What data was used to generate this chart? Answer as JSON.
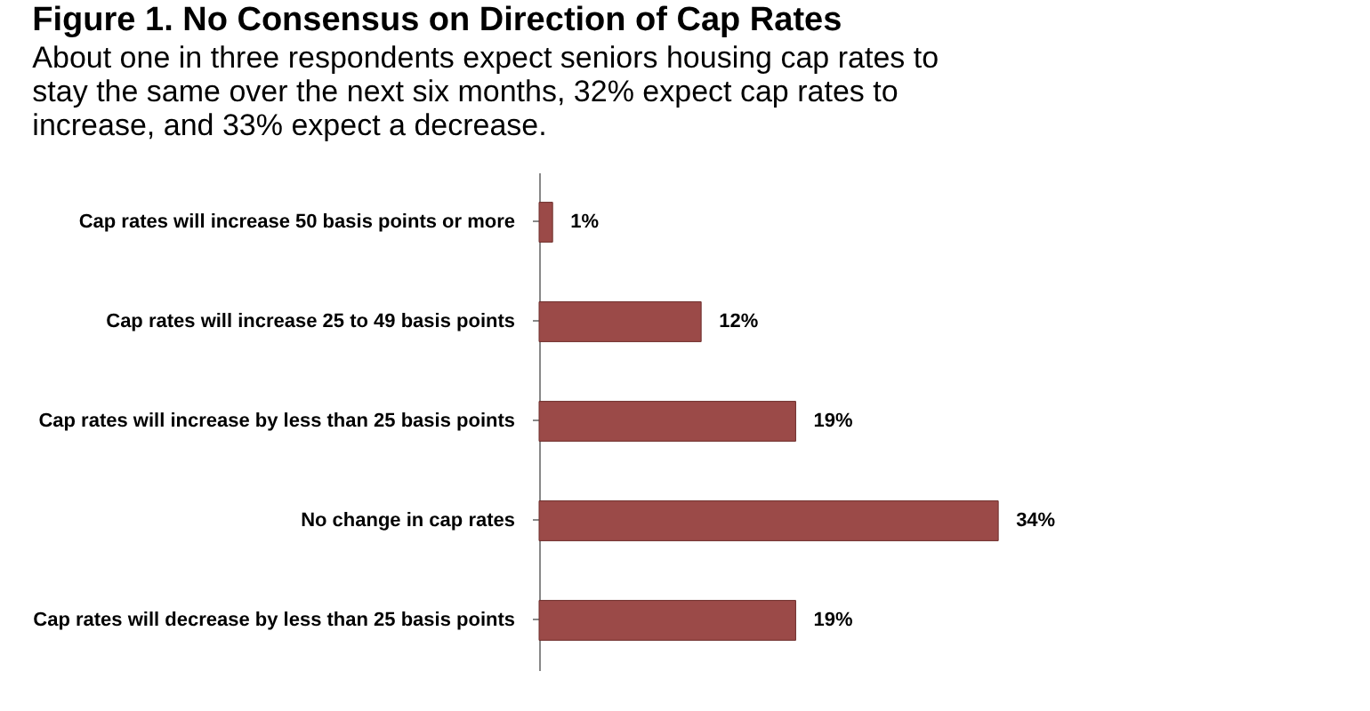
{
  "chart_data": {
    "type": "bar",
    "orientation": "horizontal",
    "title": "Figure 1. No Consensus on Direction of Cap Rates",
    "subtitle": "About one in three respondents expect seniors housing cap rates to stay the same over the next six months, 32% expect cap rates to increase, and 33% expect a decrease.",
    "categories": [
      "Cap rates will increase 50 basis points or more",
      "Cap rates will increase 25 to 49 basis points",
      "Cap rates will increase by less than 25 basis points",
      "No change in cap rates",
      "Cap rates will decrease by less than 25 basis points"
    ],
    "values": [
      1,
      12,
      19,
      34,
      19
    ],
    "value_labels": [
      "1%",
      "12%",
      "19%",
      "34%",
      "19%"
    ],
    "color": "#9b4a48"
  }
}
